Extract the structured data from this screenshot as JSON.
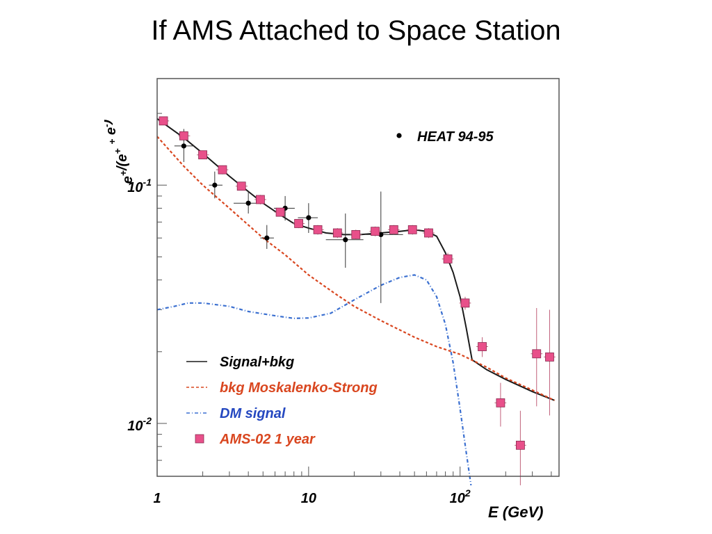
{
  "slide": {
    "title": "If AMS Attached to Space Station"
  },
  "chart_data": {
    "type": "scatter",
    "title": "",
    "xlabel": "E (GeV)",
    "ylabel": "e+/(e+ + e-)",
    "xscale": "log",
    "yscale": "log",
    "xlim": [
      1,
      450
    ],
    "ylim": [
      0.006,
      0.28
    ],
    "x_tick_labels": [
      "1",
      "10",
      "10^2"
    ],
    "x_tick_values": [
      1,
      10,
      100
    ],
    "y_tick_labels": [
      "10^-2",
      "10^-1"
    ],
    "y_tick_values": [
      0.01,
      0.1
    ],
    "legend_placement": "lower-left",
    "legend_top_right": "HEAT 94-95",
    "series": [
      {
        "name": "HEAT 94-95",
        "kind": "points",
        "color": "#000000",
        "points": [
          {
            "x": 1.5,
            "y": 0.146,
            "xerr_lo": 1.3,
            "xerr_hi": 1.75,
            "yerr_lo": 0.125,
            "yerr_hi": 0.172
          },
          {
            "x": 2.4,
            "y": 0.1,
            "xerr_lo": 2.2,
            "xerr_hi": 2.7,
            "yerr_lo": 0.088,
            "yerr_hi": 0.114
          },
          {
            "x": 4.0,
            "y": 0.084,
            "xerr_lo": 3.2,
            "xerr_hi": 4.9,
            "yerr_lo": 0.076,
            "yerr_hi": 0.094
          },
          {
            "x": 5.3,
            "y": 0.06,
            "xerr_lo": 4.8,
            "xerr_hi": 5.9,
            "yerr_lo": 0.054,
            "yerr_hi": 0.068
          },
          {
            "x": 7.0,
            "y": 0.08,
            "xerr_lo": 5.9,
            "xerr_hi": 8.1,
            "yerr_lo": 0.071,
            "yerr_hi": 0.09
          },
          {
            "x": 10.0,
            "y": 0.073,
            "xerr_lo": 8.5,
            "xerr_hi": 11.5,
            "yerr_lo": 0.063,
            "yerr_hi": 0.084
          },
          {
            "x": 17.5,
            "y": 0.059,
            "xerr_lo": 13.0,
            "xerr_hi": 23.0,
            "yerr_lo": 0.045,
            "yerr_hi": 0.076
          },
          {
            "x": 30.0,
            "y": 0.062,
            "xerr_lo": 24.0,
            "xerr_hi": 42.0,
            "yerr_lo": 0.032,
            "yerr_hi": 0.094
          }
        ]
      },
      {
        "name": "AMS-02 1 year",
        "kind": "points",
        "color": "#e8508a",
        "points": [
          {
            "x": 1.1,
            "y": 0.186,
            "xerr_lo": 1.02,
            "xerr_hi": 1.2,
            "yerr_lo": 0.181,
            "yerr_hi": 0.191
          },
          {
            "x": 1.5,
            "y": 0.161,
            "xerr_lo": 1.38,
            "xerr_hi": 1.65,
            "yerr_lo": 0.156,
            "yerr_hi": 0.166
          },
          {
            "x": 2.0,
            "y": 0.134,
            "xerr_lo": 1.83,
            "xerr_hi": 2.2,
            "yerr_lo": 0.129,
            "yerr_hi": 0.139
          },
          {
            "x": 2.7,
            "y": 0.116,
            "xerr_lo": 2.45,
            "xerr_hi": 2.95,
            "yerr_lo": 0.111,
            "yerr_hi": 0.121
          },
          {
            "x": 3.6,
            "y": 0.099,
            "xerr_lo": 3.3,
            "xerr_hi": 3.95,
            "yerr_lo": 0.095,
            "yerr_hi": 0.103
          },
          {
            "x": 4.8,
            "y": 0.087,
            "xerr_lo": 4.4,
            "xerr_hi": 5.25,
            "yerr_lo": 0.083,
            "yerr_hi": 0.091
          },
          {
            "x": 6.5,
            "y": 0.077,
            "xerr_lo": 5.95,
            "xerr_hi": 7.1,
            "yerr_lo": 0.074,
            "yerr_hi": 0.08
          },
          {
            "x": 8.6,
            "y": 0.069,
            "xerr_lo": 7.9,
            "xerr_hi": 9.4,
            "yerr_lo": 0.066,
            "yerr_hi": 0.072
          },
          {
            "x": 11.5,
            "y": 0.065,
            "xerr_lo": 10.5,
            "xerr_hi": 12.6,
            "yerr_lo": 0.062,
            "yerr_hi": 0.068
          },
          {
            "x": 15.5,
            "y": 0.063,
            "xerr_lo": 14.2,
            "xerr_hi": 16.9,
            "yerr_lo": 0.06,
            "yerr_hi": 0.066
          },
          {
            "x": 20.5,
            "y": 0.062,
            "xerr_lo": 18.8,
            "xerr_hi": 22.4,
            "yerr_lo": 0.059,
            "yerr_hi": 0.065
          },
          {
            "x": 27.5,
            "y": 0.064,
            "xerr_lo": 25.2,
            "xerr_hi": 30.0,
            "yerr_lo": 0.061,
            "yerr_hi": 0.067
          },
          {
            "x": 36.5,
            "y": 0.065,
            "xerr_lo": 33.4,
            "xerr_hi": 39.9,
            "yerr_lo": 0.062,
            "yerr_hi": 0.068
          },
          {
            "x": 48.5,
            "y": 0.065,
            "xerr_lo": 44.4,
            "xerr_hi": 53.0,
            "yerr_lo": 0.062,
            "yerr_hi": 0.068
          },
          {
            "x": 62.0,
            "y": 0.063,
            "xerr_lo": 56.7,
            "xerr_hi": 67.8,
            "yerr_lo": 0.06,
            "yerr_hi": 0.066
          },
          {
            "x": 83.0,
            "y": 0.049,
            "xerr_lo": 75.9,
            "xerr_hi": 90.7,
            "yerr_lo": 0.047,
            "yerr_hi": 0.052
          },
          {
            "x": 108.0,
            "y": 0.032,
            "xerr_lo": 98.8,
            "xerr_hi": 118.0,
            "yerr_lo": 0.03,
            "yerr_hi": 0.034
          },
          {
            "x": 140.0,
            "y": 0.021,
            "xerr_lo": 128.0,
            "xerr_hi": 153.0,
            "yerr_lo": 0.019,
            "yerr_hi": 0.023
          },
          {
            "x": 185.0,
            "y": 0.0122,
            "xerr_lo": 169.0,
            "xerr_hi": 202.0,
            "yerr_lo": 0.0097,
            "yerr_hi": 0.0148
          },
          {
            "x": 250.0,
            "y": 0.0081,
            "xerr_lo": 229.0,
            "xerr_hi": 273.0,
            "yerr_lo": 0.0055,
            "yerr_hi": 0.0113
          },
          {
            "x": 320.0,
            "y": 0.0196,
            "xerr_lo": 293.0,
            "xerr_hi": 350.0,
            "yerr_lo": 0.0118,
            "yerr_hi": 0.0305
          },
          {
            "x": 390.0,
            "y": 0.019,
            "xerr_lo": 357.0,
            "xerr_hi": 426.0,
            "yerr_lo": 0.0108,
            "yerr_hi": 0.03
          }
        ]
      },
      {
        "name": "Signal+bkg",
        "kind": "line",
        "style": "solid",
        "color": "#1a1a1a",
        "x": [
          1.0,
          1.5,
          2.0,
          3.0,
          4.0,
          5.0,
          6.5,
          8.0,
          10.0,
          13.0,
          17.0,
          22.0,
          30.0,
          40.0,
          50.0,
          60.0,
          70.0,
          80.0,
          90.0,
          100.0,
          110.0,
          120.0,
          150.0,
          200.0,
          300.0,
          420.0
        ],
        "y": [
          0.19,
          0.158,
          0.136,
          0.109,
          0.094,
          0.084,
          0.075,
          0.069,
          0.066,
          0.063,
          0.062,
          0.062,
          0.063,
          0.064,
          0.065,
          0.064,
          0.061,
          0.052,
          0.043,
          0.034,
          0.025,
          0.0185,
          0.0168,
          0.0153,
          0.0136,
          0.0125
        ]
      },
      {
        "name": "bkg Moskalenko-Strong",
        "kind": "line",
        "style": "dashed",
        "color": "#d9461f",
        "x": [
          1.0,
          1.5,
          2.0,
          3.0,
          5.0,
          7.0,
          10.0,
          15.0,
          20.0,
          30.0,
          50.0,
          70.0,
          100.0,
          150.0,
          200.0,
          300.0,
          420.0
        ],
        "y": [
          0.16,
          0.12,
          0.1,
          0.08,
          0.06,
          0.051,
          0.042,
          0.035,
          0.031,
          0.027,
          0.023,
          0.021,
          0.0195,
          0.0172,
          0.0155,
          0.0138,
          0.0125
        ]
      },
      {
        "name": "DM signal",
        "kind": "line",
        "style": "dash-dot",
        "color": "#3a6fd0",
        "x": [
          1.0,
          1.3,
          1.6,
          2.0,
          3.0,
          4.0,
          6.0,
          8.0,
          10.0,
          14.0,
          20.0,
          30.0,
          40.0,
          50.0,
          60.0,
          70.0,
          80.0,
          90.0,
          100.0,
          110.0,
          118.0
        ],
        "y": [
          0.03,
          0.031,
          0.032,
          0.032,
          0.031,
          0.0295,
          0.0283,
          0.0276,
          0.0277,
          0.029,
          0.033,
          0.038,
          0.041,
          0.042,
          0.04,
          0.034,
          0.026,
          0.018,
          0.0115,
          0.0075,
          0.0055
        ]
      }
    ],
    "legend": [
      {
        "label": "Signal+bkg",
        "color": "#1a1a1a",
        "label_color": "#000000"
      },
      {
        "label": "bkg Moskalenko-Strong",
        "color": "#d9461f",
        "label_color": "#d9461f"
      },
      {
        "label": "DM signal",
        "color": "#3a6fd0",
        "label_color": "#2548c0"
      },
      {
        "label": "AMS-02 1 year",
        "color": "#e8508a",
        "label_color": "#d9461f"
      }
    ]
  }
}
